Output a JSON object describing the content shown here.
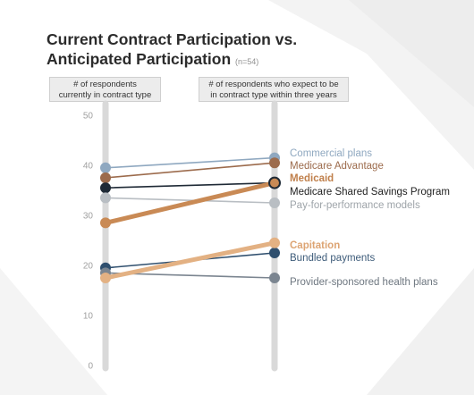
{
  "title": {
    "line1": "Current Contract Participation vs.",
    "line2": "Anticipated Participation",
    "n_label": "(n=54)"
  },
  "headers": {
    "left_line1": "# of respondents",
    "left_line2": "currently in contract type",
    "right_line1": "# of respondents who expect to be",
    "right_line2": "in contract type within three years"
  },
  "chart_data": {
    "type": "line",
    "subtype": "slope",
    "ylim": [
      0,
      50
    ],
    "yticks": [
      "0",
      "10",
      "20",
      "30",
      "40",
      "50"
    ],
    "columns": [
      "# of respondents currently in contract type",
      "# of respondents who expect to be in contract type within three years"
    ],
    "grid": false,
    "legend": "labels at right column",
    "series": [
      {
        "name": "Commercial plans",
        "values": [
          39.5,
          41.5
        ],
        "color": "#8fa8c0",
        "label_color": "#8fa8c0",
        "bold": false
      },
      {
        "name": "Medicare Advantage",
        "values": [
          37.5,
          40.5
        ],
        "color": "#9c6b4c",
        "label_color": "#9c6b4c",
        "bold": false
      },
      {
        "name": "Medicaid",
        "values": [
          28.5,
          36.5
        ],
        "color": "#c98a55",
        "label_color": "#c0804c",
        "bold": true,
        "highlight": true
      },
      {
        "name": "Medicare Shared Savings Program",
        "values": [
          35.5,
          36.5
        ],
        "color": "#1f2a36",
        "label_color": "#222222",
        "bold": false
      },
      {
        "name": "Pay-for-performance models",
        "values": [
          33.5,
          32.5
        ],
        "color": "#b9bec3",
        "label_color": "#9ea4a9",
        "bold": false
      },
      {
        "name": "Capitation",
        "values": [
          17.5,
          24.5
        ],
        "color": "#e3b183",
        "label_color": "#dda473",
        "bold": true,
        "highlight": true
      },
      {
        "name": "Bundled payments",
        "values": [
          19.5,
          22.5
        ],
        "color": "#2f4f6e",
        "label_color": "#3e5c7a",
        "bold": false
      },
      {
        "name": "Provider-sponsored health plans",
        "values": [
          18.5,
          17.5
        ],
        "color": "#7b8590",
        "label_color": "#6e7780",
        "bold": false
      }
    ]
  }
}
